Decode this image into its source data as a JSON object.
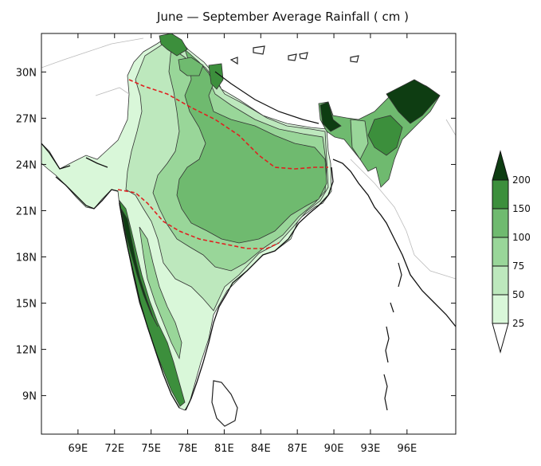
{
  "title": "June — September Average Rainfall ( cm )",
  "map": {
    "lon_ticks": [
      "69E",
      "72E",
      "75E",
      "78E",
      "81E",
      "84E",
      "87E",
      "90E",
      "93E",
      "96E"
    ],
    "lat_ticks": [
      "9N",
      "12N",
      "15N",
      "18N",
      "21N",
      "24N",
      "27N",
      "30N"
    ],
    "lon_range": [
      66,
      100
    ],
    "lat_range": [
      6.5,
      32.5
    ],
    "land_color": "#ffffff",
    "coast_color": "#222222",
    "contour_line_color": "#333333",
    "dashed_line_color": "#e02020"
  },
  "colorbar": {
    "levels": [
      "25",
      "50",
      "75",
      "100",
      "150",
      "200"
    ],
    "colors": [
      "#d9f7d9",
      "#bde8bd",
      "#99d699",
      "#6fba6f",
      "#3c8f3c",
      "#0e3d12"
    ]
  }
}
